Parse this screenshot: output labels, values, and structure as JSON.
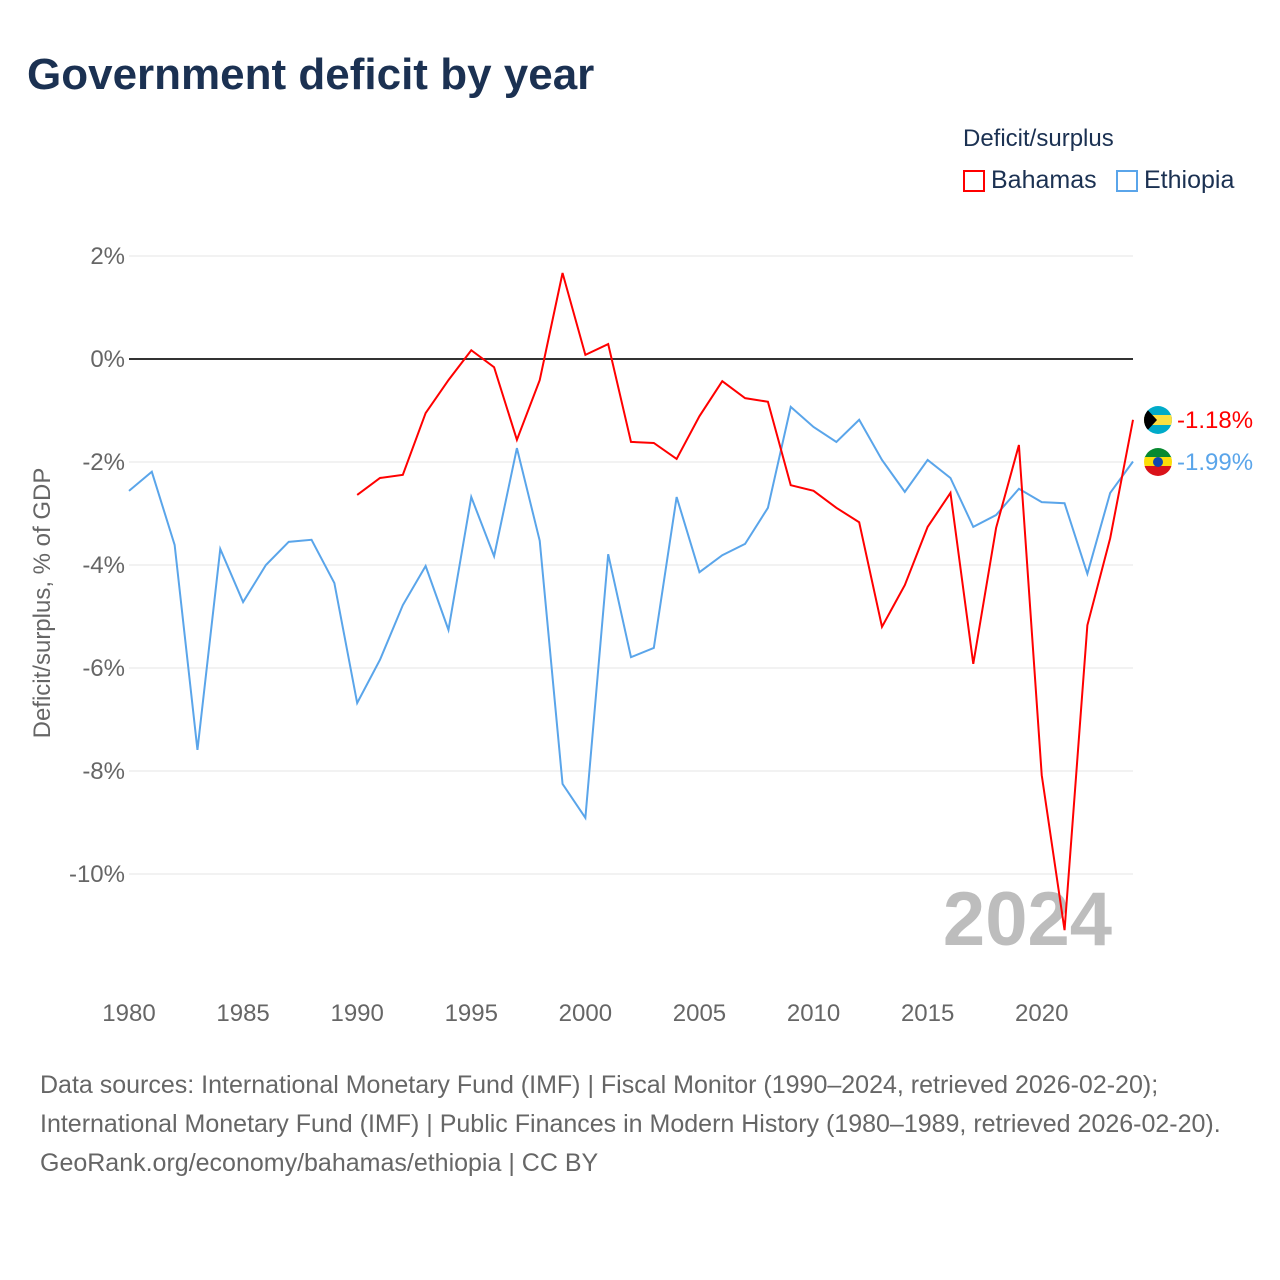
{
  "title": "Government deficit by year",
  "legend": {
    "title": "Deficit/surplus",
    "items": [
      {
        "name": "Bahamas",
        "color": "#ff0000"
      },
      {
        "name": "Ethiopia",
        "color": "#5aa5ea"
      }
    ]
  },
  "footer": {
    "sources": "Data sources: International Monetary Fund (IMF) | Fiscal Monitor (1990–2024, retrieved 2026-02-20); International Monetary Fund (IMF) | Public Finances in Modern History (1980–1989, retrieved 2026-02-20).",
    "credit": "GeoRank.org/economy/bahamas/ethiopia | CC BY"
  },
  "chart_data": {
    "type": "line",
    "title": "Government deficit by year",
    "xlabel": "",
    "ylabel": "Deficit/surplus, % of GDP",
    "xlim": [
      1980,
      2024
    ],
    "ylim": [
      -11.5,
      2
    ],
    "x_ticks": [
      "1980",
      "1985",
      "1990",
      "1995",
      "2000",
      "2005",
      "2010",
      "2015",
      "2020"
    ],
    "y_ticks": [
      {
        "v": 2,
        "label": "2%"
      },
      {
        "v": 0,
        "label": "0%"
      },
      {
        "v": -2,
        "label": "-2%"
      },
      {
        "v": -4,
        "label": "-4%"
      },
      {
        "v": -6,
        "label": "-6%"
      },
      {
        "v": -8,
        "label": "-8%"
      },
      {
        "v": -10,
        "label": "-10%"
      }
    ],
    "year_watermark": "2024",
    "series": [
      {
        "name": "Bahamas",
        "color": "#ff0000",
        "start": 1990,
        "end_label": "-1.18%",
        "values": [
          -2.64,
          -2.31,
          -2.25,
          -1.05,
          -0.41,
          0.17,
          -0.16,
          -1.57,
          -0.41,
          1.67,
          0.08,
          0.29,
          -1.61,
          -1.63,
          -1.94,
          -1.11,
          -0.43,
          -0.76,
          -0.83,
          -2.45,
          -2.56,
          -2.89,
          -3.17,
          -5.2,
          -4.39,
          -3.26,
          -2.6,
          -5.92,
          -3.28,
          -1.67,
          -8.08,
          -11.09,
          -5.17,
          -3.48,
          -1.18
        ]
      },
      {
        "name": "Ethiopia",
        "color": "#5aa5ea",
        "start": 1980,
        "end_label": "-1.99%",
        "values": [
          -2.56,
          -2.19,
          -3.61,
          -7.59,
          -3.69,
          -4.72,
          -4.0,
          -3.55,
          -3.51,
          -4.35,
          -6.68,
          -5.84,
          -4.78,
          -4.02,
          -5.26,
          -2.68,
          -3.83,
          -1.73,
          -3.53,
          -8.25,
          -8.91,
          -3.79,
          -5.79,
          -5.61,
          -2.68,
          -4.14,
          -3.81,
          -3.59,
          -2.89,
          -0.93,
          -1.32,
          -1.61,
          -1.18,
          -1.96,
          -2.58,
          -1.96,
          -2.31,
          -3.26,
          -3.03,
          -2.52,
          -2.78,
          -2.8,
          -4.17,
          -2.6,
          -1.99
        ]
      }
    ]
  }
}
